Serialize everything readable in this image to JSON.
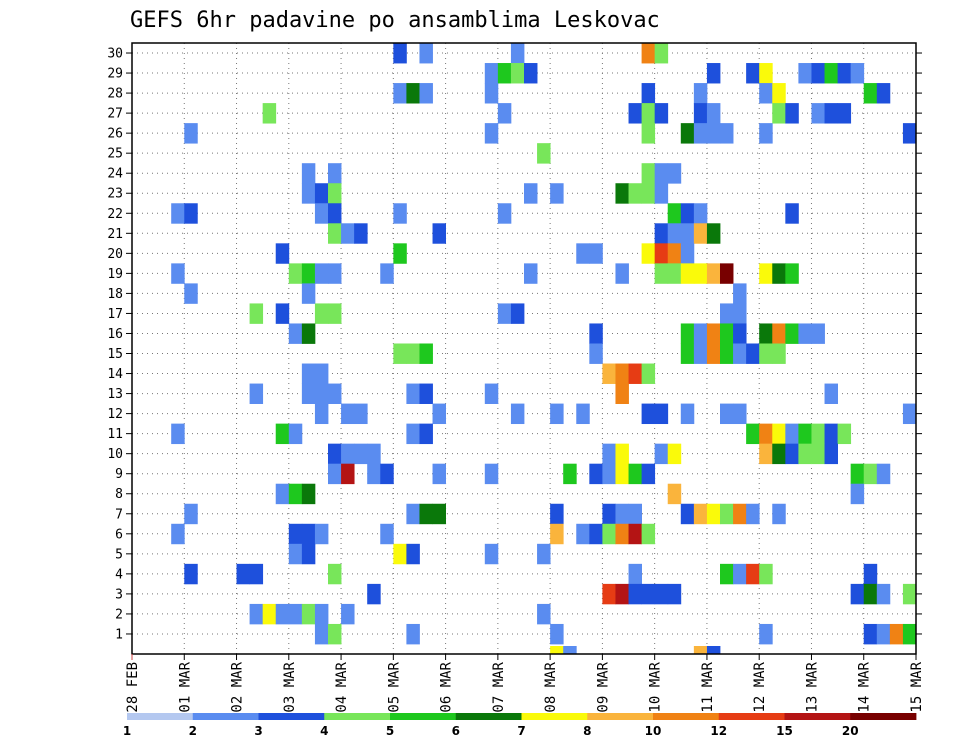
{
  "chart_data": {
    "type": "heatmap",
    "title": "GEFS 6hr padavine po ansamblima Leskovac",
    "y_tick_labels": [
      "1",
      "2",
      "3",
      "4",
      "5",
      "6",
      "7",
      "8",
      "9",
      "10",
      "11",
      "12",
      "13",
      "14",
      "15",
      "16",
      "17",
      "18",
      "19",
      "20",
      "21",
      "22",
      "23",
      "24",
      "25",
      "26",
      "27",
      "28",
      "29",
      "30"
    ],
    "x_tick_labels": [
      "28 FEB",
      "01 MAR",
      "02 MAR",
      "03 MAR",
      "04 MAR",
      "05 MAR",
      "06 MAR",
      "07 MAR",
      "08 MAR",
      "09 MAR",
      "10 MAR",
      "11 MAR",
      "12 MAR",
      "13 MAR",
      "14 MAR",
      "15 MAR"
    ],
    "x_steps": 60,
    "steps_per_day": 4,
    "grid": true,
    "color_bins": [
      {
        "label": "1",
        "color": "#b4c8f0"
      },
      {
        "label": "2",
        "color": "#5a8cf0"
      },
      {
        "label": "3",
        "color": "#1e50dc"
      },
      {
        "label": "4",
        "color": "#78e65a"
      },
      {
        "label": "5",
        "color": "#1ec81e"
      },
      {
        "label": "6",
        "color": "#0a780a"
      },
      {
        "label": "7",
        "color": "#fafa0a"
      },
      {
        "label": "8",
        "color": "#fab43c"
      },
      {
        "label": "10",
        "color": "#f08214"
      },
      {
        "label": "12",
        "color": "#e63c14"
      },
      {
        "label": "15",
        "color": "#b41414"
      },
      {
        "label": "20",
        "color": "#780000"
      }
    ],
    "colorbar_labels": [
      "1",
      "2",
      "3",
      "4",
      "5",
      "6",
      "7",
      "8",
      "10",
      "12",
      "15",
      "20"
    ],
    "cells": [
      [
        30,
        20,
        2
      ],
      [
        30,
        22,
        1
      ],
      [
        30,
        29,
        1
      ],
      [
        30,
        39,
        8
      ],
      [
        30,
        40,
        3
      ],
      [
        29,
        27,
        1
      ],
      [
        29,
        28,
        4
      ],
      [
        29,
        29,
        3
      ],
      [
        29,
        30,
        2
      ],
      [
        29,
        44,
        2
      ],
      [
        29,
        47,
        2
      ],
      [
        29,
        48,
        6
      ],
      [
        29,
        51,
        1
      ],
      [
        29,
        52,
        2
      ],
      [
        29,
        53,
        4
      ],
      [
        29,
        54,
        2
      ],
      [
        29,
        55,
        1
      ],
      [
        28,
        20,
        1
      ],
      [
        28,
        21,
        5
      ],
      [
        28,
        22,
        1
      ],
      [
        28,
        27,
        1
      ],
      [
        28,
        39,
        2
      ],
      [
        28,
        43,
        1
      ],
      [
        28,
        48,
        1
      ],
      [
        28,
        49,
        6
      ],
      [
        28,
        56,
        4
      ],
      [
        28,
        57,
        2
      ],
      [
        27,
        10,
        3
      ],
      [
        27,
        28,
        1
      ],
      [
        27,
        38,
        2
      ],
      [
        27,
        39,
        3
      ],
      [
        27,
        40,
        2
      ],
      [
        27,
        43,
        2
      ],
      [
        27,
        44,
        1
      ],
      [
        27,
        49,
        3
      ],
      [
        27,
        50,
        2
      ],
      [
        27,
        52,
        1
      ],
      [
        27,
        53,
        2
      ],
      [
        27,
        54,
        2
      ],
      [
        26,
        4,
        1
      ],
      [
        26,
        27,
        1
      ],
      [
        26,
        39,
        3
      ],
      [
        26,
        42,
        5
      ],
      [
        26,
        43,
        1
      ],
      [
        26,
        44,
        1
      ],
      [
        26,
        45,
        1
      ],
      [
        26,
        48,
        1
      ],
      [
        26,
        59,
        2
      ],
      [
        25,
        31,
        3
      ],
      [
        24,
        13,
        1
      ],
      [
        24,
        15,
        1
      ],
      [
        24,
        39,
        3
      ],
      [
        24,
        40,
        1
      ],
      [
        24,
        41,
        1
      ],
      [
        23,
        13,
        1
      ],
      [
        23,
        14,
        2
      ],
      [
        23,
        15,
        3
      ],
      [
        23,
        30,
        1
      ],
      [
        23,
        32,
        1
      ],
      [
        23,
        37,
        5
      ],
      [
        23,
        38,
        3
      ],
      [
        23,
        39,
        3
      ],
      [
        23,
        40,
        1
      ],
      [
        22,
        3,
        1
      ],
      [
        22,
        4,
        2
      ],
      [
        22,
        14,
        1
      ],
      [
        22,
        15,
        2
      ],
      [
        22,
        20,
        1
      ],
      [
        22,
        28,
        1
      ],
      [
        22,
        41,
        4
      ],
      [
        22,
        42,
        2
      ],
      [
        22,
        43,
        1
      ],
      [
        22,
        50,
        2
      ],
      [
        21,
        15,
        3
      ],
      [
        21,
        16,
        1
      ],
      [
        21,
        17,
        2
      ],
      [
        21,
        23,
        2
      ],
      [
        21,
        40,
        2
      ],
      [
        21,
        41,
        1
      ],
      [
        21,
        42,
        1
      ],
      [
        21,
        43,
        7
      ],
      [
        21,
        44,
        5
      ],
      [
        20,
        11,
        2
      ],
      [
        20,
        20,
        4
      ],
      [
        20,
        34,
        1
      ],
      [
        20,
        35,
        1
      ],
      [
        20,
        39,
        6
      ],
      [
        20,
        40,
        9
      ],
      [
        20,
        41,
        8
      ],
      [
        20,
        42,
        1
      ],
      [
        19,
        3,
        1
      ],
      [
        19,
        12,
        3
      ],
      [
        19,
        13,
        4
      ],
      [
        19,
        14,
        1
      ],
      [
        19,
        15,
        1
      ],
      [
        19,
        19,
        1
      ],
      [
        19,
        30,
        1
      ],
      [
        19,
        37,
        1
      ],
      [
        19,
        40,
        3
      ],
      [
        19,
        41,
        3
      ],
      [
        19,
        42,
        6
      ],
      [
        19,
        43,
        6
      ],
      [
        19,
        44,
        7
      ],
      [
        19,
        45,
        11
      ],
      [
        19,
        48,
        6
      ],
      [
        19,
        49,
        5
      ],
      [
        19,
        50,
        4
      ],
      [
        18,
        4,
        1
      ],
      [
        18,
        13,
        1
      ],
      [
        18,
        46,
        1
      ],
      [
        17,
        9,
        3
      ],
      [
        17,
        11,
        2
      ],
      [
        17,
        14,
        3
      ],
      [
        17,
        15,
        3
      ],
      [
        17,
        28,
        1
      ],
      [
        17,
        29,
        2
      ],
      [
        17,
        45,
        1
      ],
      [
        17,
        46,
        1
      ],
      [
        16,
        12,
        1
      ],
      [
        16,
        13,
        5
      ],
      [
        16,
        35,
        2
      ],
      [
        16,
        42,
        4
      ],
      [
        16,
        43,
        1
      ],
      [
        16,
        44,
        8
      ],
      [
        16,
        45,
        4
      ],
      [
        16,
        46,
        2
      ],
      [
        16,
        48,
        5
      ],
      [
        16,
        49,
        8
      ],
      [
        16,
        50,
        4
      ],
      [
        16,
        51,
        1
      ],
      [
        16,
        52,
        1
      ],
      [
        15,
        20,
        3
      ],
      [
        15,
        21,
        3
      ],
      [
        15,
        22,
        4
      ],
      [
        15,
        35,
        1
      ],
      [
        15,
        42,
        4
      ],
      [
        15,
        43,
        1
      ],
      [
        15,
        44,
        8
      ],
      [
        15,
        45,
        4
      ],
      [
        15,
        46,
        1
      ],
      [
        15,
        47,
        2
      ],
      [
        15,
        48,
        3
      ],
      [
        15,
        49,
        3
      ],
      [
        14,
        13,
        1
      ],
      [
        14,
        14,
        1
      ],
      [
        14,
        36,
        7
      ],
      [
        14,
        37,
        8
      ],
      [
        14,
        38,
        9
      ],
      [
        14,
        39,
        3
      ],
      [
        13,
        9,
        1
      ],
      [
        13,
        13,
        1
      ],
      [
        13,
        14,
        1
      ],
      [
        13,
        15,
        1
      ],
      [
        13,
        21,
        1
      ],
      [
        13,
        22,
        2
      ],
      [
        13,
        27,
        1
      ],
      [
        13,
        37,
        8
      ],
      [
        13,
        53,
        1
      ],
      [
        12,
        14,
        1
      ],
      [
        12,
        16,
        1
      ],
      [
        12,
        17,
        1
      ],
      [
        12,
        23,
        1
      ],
      [
        12,
        29,
        1
      ],
      [
        12,
        32,
        1
      ],
      [
        12,
        34,
        1
      ],
      [
        12,
        39,
        2
      ],
      [
        12,
        40,
        2
      ],
      [
        12,
        42,
        1
      ],
      [
        12,
        45,
        1
      ],
      [
        12,
        46,
        1
      ],
      [
        12,
        59,
        1
      ],
      [
        11,
        3,
        1
      ],
      [
        11,
        11,
        4
      ],
      [
        11,
        12,
        1
      ],
      [
        11,
        21,
        1
      ],
      [
        11,
        22,
        2
      ],
      [
        11,
        47,
        4
      ],
      [
        11,
        48,
        8
      ],
      [
        11,
        49,
        6
      ],
      [
        11,
        50,
        1
      ],
      [
        11,
        51,
        4
      ],
      [
        11,
        52,
        3
      ],
      [
        11,
        53,
        2
      ],
      [
        11,
        54,
        3
      ],
      [
        10,
        15,
        2
      ],
      [
        10,
        16,
        1
      ],
      [
        10,
        17,
        1
      ],
      [
        10,
        18,
        1
      ],
      [
        10,
        36,
        1
      ],
      [
        10,
        37,
        6
      ],
      [
        10,
        40,
        1
      ],
      [
        10,
        41,
        6
      ],
      [
        10,
        48,
        7
      ],
      [
        10,
        49,
        5
      ],
      [
        10,
        50,
        2
      ],
      [
        10,
        51,
        3
      ],
      [
        10,
        52,
        3
      ],
      [
        10,
        53,
        2
      ],
      [
        9,
        15,
        1
      ],
      [
        9,
        16,
        10
      ],
      [
        9,
        18,
        1
      ],
      [
        9,
        19,
        2
      ],
      [
        9,
        23,
        1
      ],
      [
        9,
        27,
        1
      ],
      [
        9,
        33,
        4
      ],
      [
        9,
        35,
        2
      ],
      [
        9,
        36,
        1
      ],
      [
        9,
        37,
        6
      ],
      [
        9,
        38,
        4
      ],
      [
        9,
        39,
        2
      ],
      [
        9,
        55,
        4
      ],
      [
        9,
        56,
        3
      ],
      [
        9,
        57,
        1
      ],
      [
        8,
        11,
        1
      ],
      [
        8,
        12,
        4
      ],
      [
        8,
        13,
        5
      ],
      [
        8,
        41,
        7
      ],
      [
        8,
        55,
        1
      ],
      [
        7,
        4,
        1
      ],
      [
        7,
        21,
        1
      ],
      [
        7,
        22,
        5
      ],
      [
        7,
        23,
        5
      ],
      [
        7,
        32,
        2
      ],
      [
        7,
        36,
        2
      ],
      [
        7,
        37,
        1
      ],
      [
        7,
        38,
        1
      ],
      [
        7,
        42,
        2
      ],
      [
        7,
        43,
        7
      ],
      [
        7,
        44,
        6
      ],
      [
        7,
        45,
        3
      ],
      [
        7,
        46,
        8
      ],
      [
        7,
        47,
        1
      ],
      [
        7,
        49,
        1
      ],
      [
        6,
        3,
        1
      ],
      [
        6,
        12,
        2
      ],
      [
        6,
        13,
        2
      ],
      [
        6,
        14,
        1
      ],
      [
        6,
        19,
        1
      ],
      [
        6,
        32,
        7
      ],
      [
        6,
        34,
        1
      ],
      [
        6,
        35,
        2
      ],
      [
        6,
        36,
        3
      ],
      [
        6,
        37,
        8
      ],
      [
        6,
        38,
        10
      ],
      [
        6,
        39,
        3
      ],
      [
        5,
        12,
        1
      ],
      [
        5,
        13,
        2
      ],
      [
        5,
        20,
        6
      ],
      [
        5,
        21,
        2
      ],
      [
        5,
        27,
        1
      ],
      [
        5,
        31,
        1
      ],
      [
        4,
        4,
        2
      ],
      [
        4,
        8,
        2
      ],
      [
        4,
        9,
        2
      ],
      [
        4,
        15,
        3
      ],
      [
        4,
        38,
        1
      ],
      [
        4,
        45,
        4
      ],
      [
        4,
        46,
        1
      ],
      [
        4,
        47,
        9
      ],
      [
        4,
        48,
        3
      ],
      [
        4,
        56,
        2
      ],
      [
        3,
        18,
        2
      ],
      [
        3,
        36,
        9
      ],
      [
        3,
        37,
        10
      ],
      [
        3,
        38,
        2
      ],
      [
        3,
        39,
        2
      ],
      [
        3,
        40,
        2
      ],
      [
        3,
        41,
        2
      ],
      [
        3,
        55,
        2
      ],
      [
        3,
        56,
        5
      ],
      [
        3,
        57,
        1
      ],
      [
        3,
        59,
        3
      ],
      [
        2,
        9,
        1
      ],
      [
        2,
        10,
        6
      ],
      [
        2,
        11,
        1
      ],
      [
        2,
        12,
        1
      ],
      [
        2,
        13,
        3
      ],
      [
        2,
        14,
        1
      ],
      [
        2,
        16,
        1
      ],
      [
        2,
        31,
        1
      ],
      [
        1,
        14,
        1
      ],
      [
        1,
        15,
        3
      ],
      [
        1,
        21,
        1
      ],
      [
        1,
        32,
        1
      ],
      [
        1,
        48,
        1
      ],
      [
        1,
        56,
        2
      ],
      [
        1,
        57,
        1
      ],
      [
        1,
        58,
        8
      ],
      [
        1,
        59,
        4
      ]
    ],
    "bottom_strip_cells": [
      [
        32,
        6
      ],
      [
        33,
        1
      ],
      [
        43,
        7
      ],
      [
        44,
        2
      ]
    ]
  }
}
